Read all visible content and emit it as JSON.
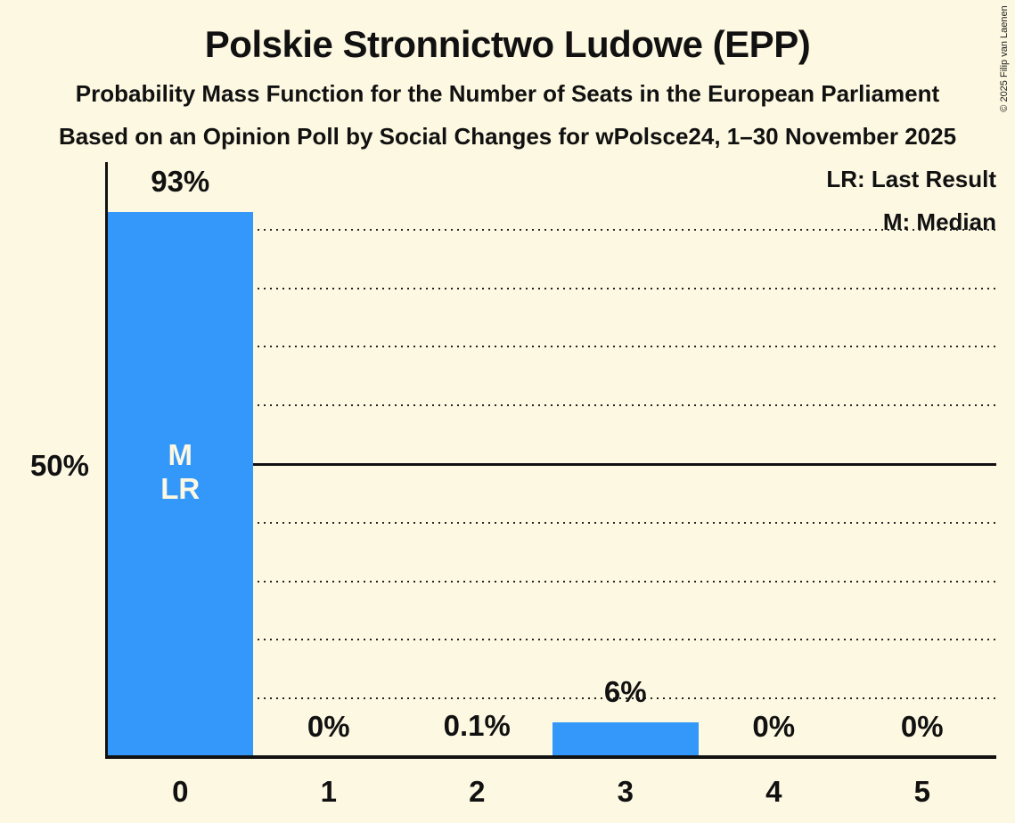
{
  "header": {
    "title": "Polskie Stronnictwo Ludowe (EPP)",
    "subtitle1": "Probability Mass Function for the Number of Seats in the European Parliament",
    "subtitle2": "Based on an Opinion Poll by Social Changes for wPolsce24, 1–30 November 2025"
  },
  "legend": {
    "lr": "LR: Last Result",
    "m": "M: Median"
  },
  "copyright": "© 2025 Filip van Laenen",
  "colors": {
    "background": "#fdf8e1",
    "bar": "#3498fa",
    "text": "#111111",
    "in_bar_text": "#fdf8e1"
  },
  "chart_data": {
    "type": "bar",
    "title": "Polskie Stronnictwo Ludowe (EPP)",
    "categories": [
      "0",
      "1",
      "2",
      "3",
      "4",
      "5"
    ],
    "values": [
      93,
      0,
      0.1,
      6,
      0,
      0
    ],
    "value_labels": [
      "93%",
      "0%",
      "0.1%",
      "6%",
      "0%",
      "0%"
    ],
    "y_tick_label": "50%",
    "y_tick_value": 50,
    "ylim": [
      0,
      100
    ],
    "gridlines_pct": [
      10,
      20,
      30,
      40,
      50,
      60,
      70,
      80,
      90
    ],
    "solid_gridline_pct": 50,
    "grid": "dotted-horizontal",
    "legend_position": "top-right",
    "annotations": [
      {
        "bar_index": 0,
        "lines": [
          "M",
          "LR"
        ]
      }
    ]
  }
}
